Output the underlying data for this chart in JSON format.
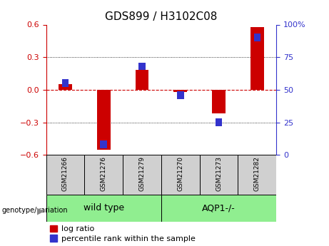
{
  "title": "GDS899 / H3102C08",
  "samples": [
    "GSM21266",
    "GSM21276",
    "GSM21279",
    "GSM21270",
    "GSM21273",
    "GSM21282"
  ],
  "log_ratios": [
    0.05,
    -0.55,
    0.18,
    -0.02,
    -0.22,
    0.58
  ],
  "percentile_ranks": [
    55,
    8,
    68,
    46,
    25,
    90
  ],
  "ylim_left": [
    -0.6,
    0.6
  ],
  "ylim_right": [
    0,
    100
  ],
  "yticks_left": [
    -0.6,
    -0.3,
    0.0,
    0.3,
    0.6
  ],
  "yticks_right": [
    0,
    25,
    50,
    75,
    100
  ],
  "bar_color_red": "#cc0000",
  "bar_color_blue": "#3333cc",
  "bar_width": 0.35,
  "zero_line_color": "#cc0000",
  "label_fontsize": 8,
  "title_fontsize": 11,
  "legend_fontsize": 8,
  "genotype_label": "genotype/variation",
  "group_label_1": "wild type",
  "group_label_2": "AQP1-/-",
  "group_box_color": "#d0d0d0",
  "group_label_color": "#90ee90"
}
